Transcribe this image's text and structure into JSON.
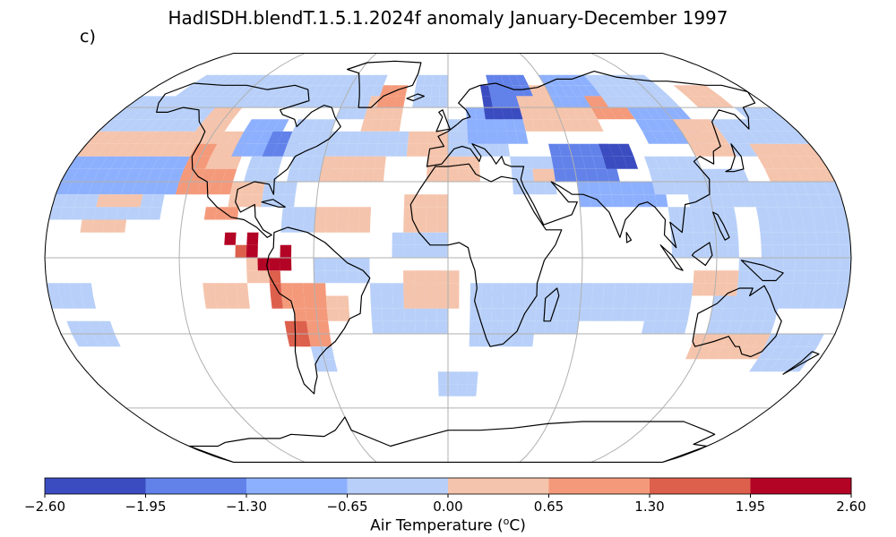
{
  "title": "HadISDH.blendT.1.5.1.2024f anomaly January-December 1997",
  "panel_label": "c)",
  "colorbar": {
    "label_text": "Air Temperature (",
    "label_sup": "o",
    "label_end": "C)",
    "ticks": [
      "−2.60",
      "−1.95",
      "−1.30",
      "−0.65",
      "0.00",
      "0.65",
      "1.30",
      "1.95",
      "2.60"
    ],
    "colors": [
      "#3b4cc0",
      "#6282ea",
      "#8db0fe",
      "#b8d0f9",
      "#f5c4ac",
      "#f49a7b",
      "#dd604d",
      "#b40426"
    ]
  },
  "map": {
    "projection": "Robinson",
    "cell_colors": [
      "#3b4cc0",
      "#6282ea",
      "#8db0fe",
      "#b8d0f9",
      "#f5c4ac",
      "#f49a7b",
      "#dd604d",
      "#b40426"
    ],
    "grid_color": "#b0b0b0",
    "coast_color": "#000000"
  }
}
